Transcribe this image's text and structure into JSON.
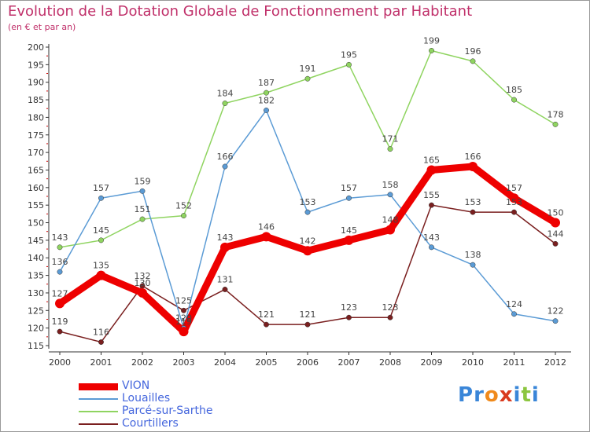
{
  "header": {
    "title": "Evolution de la Dotation Globale de Fonctionnement par Habitant",
    "subtitle": "(en € et par an)"
  },
  "logo": {
    "text": "Proxiti",
    "letters": [
      "P",
      "r",
      "o",
      "x",
      "i",
      "t",
      "i"
    ],
    "colors": [
      "#3a86d8",
      "#3a86d8",
      "#f08a1c",
      "#d93a1e",
      "#3a86d8",
      "#8cc63f",
      "#3a86d8"
    ]
  },
  "chart_data": {
    "type": "line",
    "title": "Evolution de la Dotation Globale de Fonctionnement par Habitant",
    "subtitle": "(en € et par an)",
    "xlabel": "",
    "ylabel": "",
    "categories": [
      "2000",
      "2001",
      "2002",
      "2003",
      "2004",
      "2005",
      "2006",
      "2007",
      "2008",
      "2009",
      "2010",
      "2011",
      "2012"
    ],
    "ylim": [
      115,
      200
    ],
    "yticks": [
      115,
      120,
      125,
      130,
      135,
      140,
      145,
      150,
      155,
      160,
      165,
      170,
      175,
      180,
      185,
      190,
      195,
      200
    ],
    "grid": false,
    "legend_position": "bottom-left",
    "series": [
      {
        "name": "VION",
        "color": "#ee0000",
        "values": [
          127,
          135,
          130,
          119,
          143,
          146,
          142,
          145,
          148,
          165,
          166,
          157,
          150
        ]
      },
      {
        "name": "Louailles",
        "color": "#5b9bd5",
        "values": [
          136,
          157,
          159,
          120,
          166,
          182,
          153,
          157,
          158,
          143,
          138,
          124,
          122
        ]
      },
      {
        "name": "Parcé-sur-Sarthe",
        "color": "#8fd460",
        "values": [
          143,
          145,
          151,
          152,
          184,
          187,
          191,
          195,
          171,
          199,
          196,
          185,
          178
        ]
      },
      {
        "name": "Courtillers",
        "color": "#7a1f1f",
        "values": [
          119,
          116,
          132,
          125,
          131,
          121,
          121,
          123,
          123,
          155,
          153,
          153,
          144
        ]
      }
    ]
  }
}
